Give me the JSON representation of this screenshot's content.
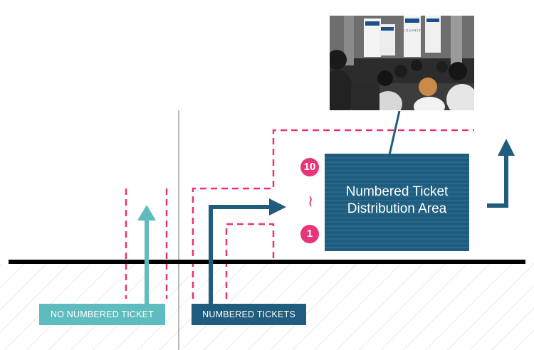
{
  "colors": {
    "dashed": "#e8357a",
    "teal": "#5ebcbe",
    "navy": "#1f5c7d",
    "ground": "#000000",
    "hatch": "#dcdcdc"
  },
  "distribution_area": {
    "line1": "Numbered Ticket",
    "line2": "Distribution Area"
  },
  "queue": {
    "top_number": "10",
    "tilde": "~",
    "bottom_number": "1"
  },
  "labels": {
    "no_numbered": "NO NUMBERED TICKET",
    "numbered": "NUMBERED TICKETS"
  },
  "photo": {
    "sign_text": "こちらの列です"
  }
}
